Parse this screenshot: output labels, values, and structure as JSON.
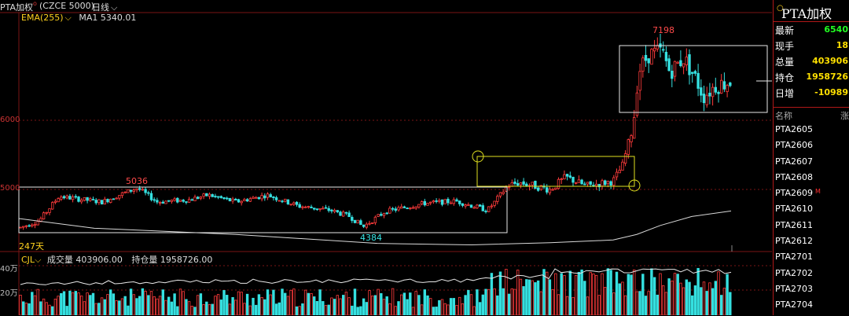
{
  "header": {
    "title": "PTA加权",
    "code": "(CZCE 5000)",
    "period": "日线",
    "period_caret": "chevron-down"
  },
  "indicators": {
    "ema_label": "EMA(255)",
    "ma_label": "MA1 5340.01"
  },
  "y_axis": {
    "label_6000": "6000",
    "label_5000": "5000"
  },
  "annotations": {
    "high_7198": "7198",
    "high_5036": "5036",
    "low_4384": "4384",
    "days_247": "247天"
  },
  "volume_panel": {
    "cjl_label": "CJL",
    "volume_text": "成交量 403906.00",
    "oi_text": "持仓量 1958726.00",
    "tick_40w": "40万",
    "tick_20w": "20万"
  },
  "side_panel": {
    "icon": "circle-icon",
    "title": "PTA加权",
    "quote": [
      {
        "key": "最新",
        "value": "6540",
        "color": "green"
      },
      {
        "key": "现手",
        "value": "18",
        "color": "yellow"
      },
      {
        "key": "总量",
        "value": "403906",
        "color": "yellow"
      },
      {
        "key": "持仓",
        "value": "1958726",
        "color": "yellow"
      },
      {
        "key": "日增",
        "value": "-10989",
        "color": "yellow"
      }
    ],
    "list_header_name": "名称",
    "list_header_change": "涨",
    "contracts": [
      {
        "name": "PTA2605",
        "mark": ""
      },
      {
        "name": "PTA2606",
        "mark": ""
      },
      {
        "name": "PTA2607",
        "mark": ""
      },
      {
        "name": "PTA2608",
        "mark": ""
      },
      {
        "name": "PTA2609",
        "mark": "M"
      },
      {
        "name": "PTA2610",
        "mark": ""
      },
      {
        "name": "PTA2611",
        "mark": ""
      },
      {
        "name": "PTA2612",
        "mark": ""
      },
      {
        "name": "PTA2701",
        "mark": ""
      },
      {
        "name": "PTA2702",
        "mark": ""
      },
      {
        "name": "PTA2703",
        "mark": ""
      },
      {
        "name": "PTA2704",
        "mark": ""
      }
    ]
  },
  "colors": {
    "up": "#ff3b3b",
    "down": "#35e0e0",
    "ema": "#d8d8d8",
    "box": "#e8e8e8",
    "yellow_box": "#e0e020",
    "grid": "#7a1515"
  },
  "chart_data": {
    "type": "candlestick",
    "y_ticks": [
      5000,
      6000
    ],
    "annotated_prices": {
      "high": 7198,
      "mid_high": 5036,
      "low": 4384
    },
    "ema_period": 255,
    "ma1": 5340.01,
    "last": 6540,
    "volume_last": 403906,
    "open_interest": 1958726
  }
}
